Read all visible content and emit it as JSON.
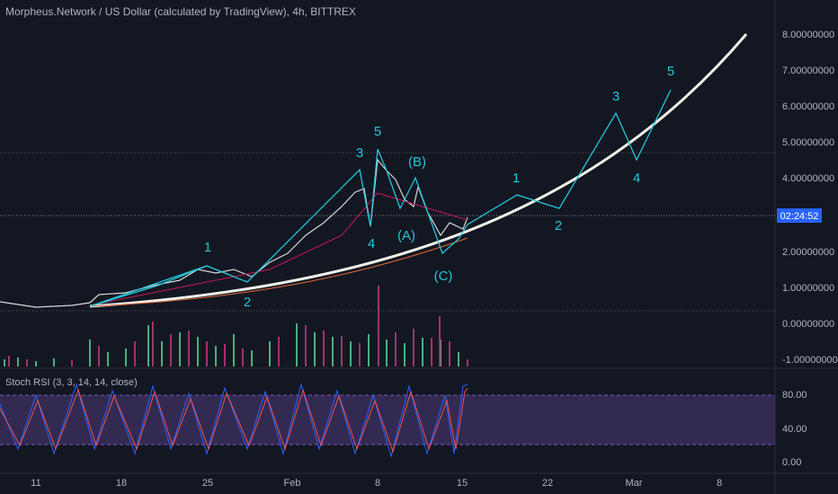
{
  "header": {
    "title": "Morpheus.Network / US Dollar (calculated by TradingView), 4h, BITTREX"
  },
  "price_axis": {
    "labels": [
      "8.00000000",
      "7.00000000",
      "6.00000000",
      "5.00000000",
      "4.00000000",
      "2.00000000",
      "1.00000000",
      "0.00000000",
      "-1.00000000"
    ],
    "countdown": "02:24:52"
  },
  "waves": [
    "1",
    "2",
    "3",
    "4",
    "5",
    "(B)",
    "(A)",
    "(C)",
    "1",
    "2",
    "3",
    "4",
    "5"
  ],
  "indicator": {
    "label": "Stoch RSI (3, 3, 14, 14, close)",
    "ticks": [
      "80.00",
      "40.00",
      "0.00"
    ]
  },
  "time_axis": [
    "11",
    "18",
    "25",
    "Feb",
    "8",
    "15",
    "22",
    "Mar",
    "8"
  ]
}
